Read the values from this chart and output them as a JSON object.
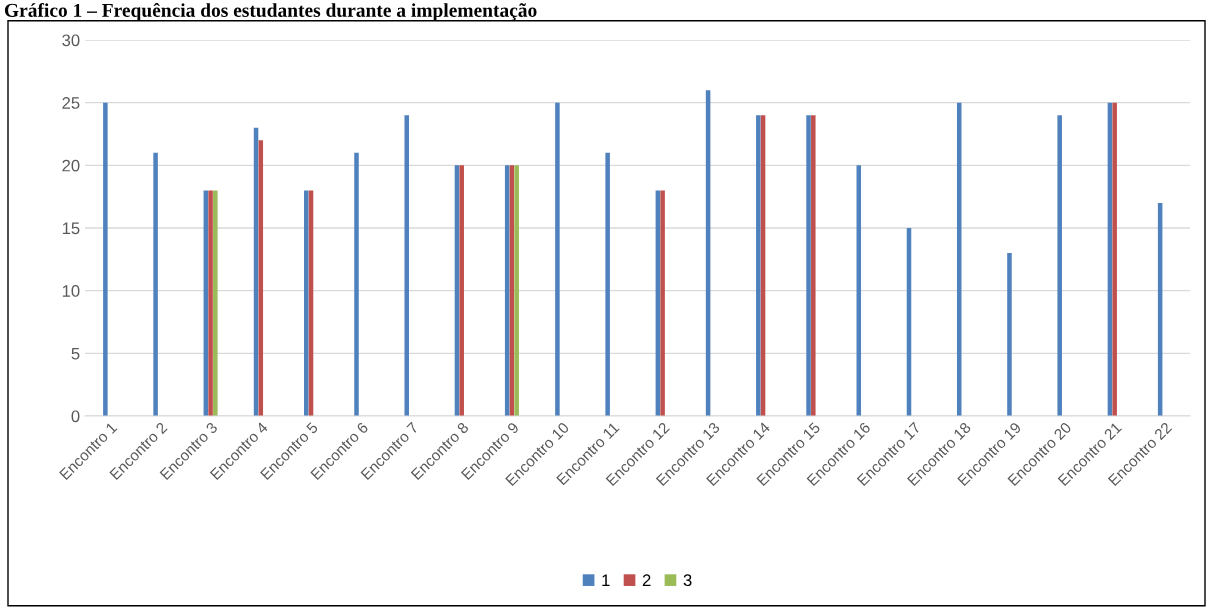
{
  "chart_data": {
    "type": "bar",
    "title": "Gráfico 1 – Frequência dos estudantes durante a implementação",
    "categories": [
      "Encontro 1",
      "Encontro 2",
      "Encontro 3",
      "Encontro 4",
      "Encontro 5",
      "Encontro 6",
      "Encontro 7",
      "Encontro 8",
      "Encontro 9",
      "Encontro 10",
      "Encontro 11",
      "Encontro 12",
      "Encontro 13",
      "Encontro 14",
      "Encontro 15",
      "Encontro 16",
      "Encontro 17",
      "Encontro 18",
      "Encontro 19",
      "Encontro 20",
      "Encontro 21",
      "Encontro 22"
    ],
    "series": [
      {
        "name": "1",
        "color": "#4f81bd",
        "values": [
          25,
          21,
          18,
          23,
          18,
          21,
          24,
          20,
          20,
          25,
          21,
          18,
          26,
          24,
          24,
          20,
          15,
          25,
          13,
          24,
          25,
          17
        ]
      },
      {
        "name": "2",
        "color": "#c0504d",
        "values": [
          null,
          null,
          18,
          22,
          18,
          null,
          null,
          20,
          20,
          null,
          null,
          18,
          null,
          24,
          24,
          null,
          null,
          null,
          null,
          null,
          25,
          null
        ]
      },
      {
        "name": "3",
        "color": "#9bbb59",
        "values": [
          null,
          null,
          18,
          null,
          null,
          null,
          null,
          null,
          20,
          null,
          null,
          null,
          null,
          null,
          null,
          null,
          null,
          null,
          null,
          null,
          null,
          null
        ]
      }
    ],
    "ylim": [
      0,
      30
    ],
    "yticks": [
      0,
      5,
      10,
      15,
      20,
      25,
      30
    ],
    "grid": "y",
    "legend": "bottom"
  }
}
